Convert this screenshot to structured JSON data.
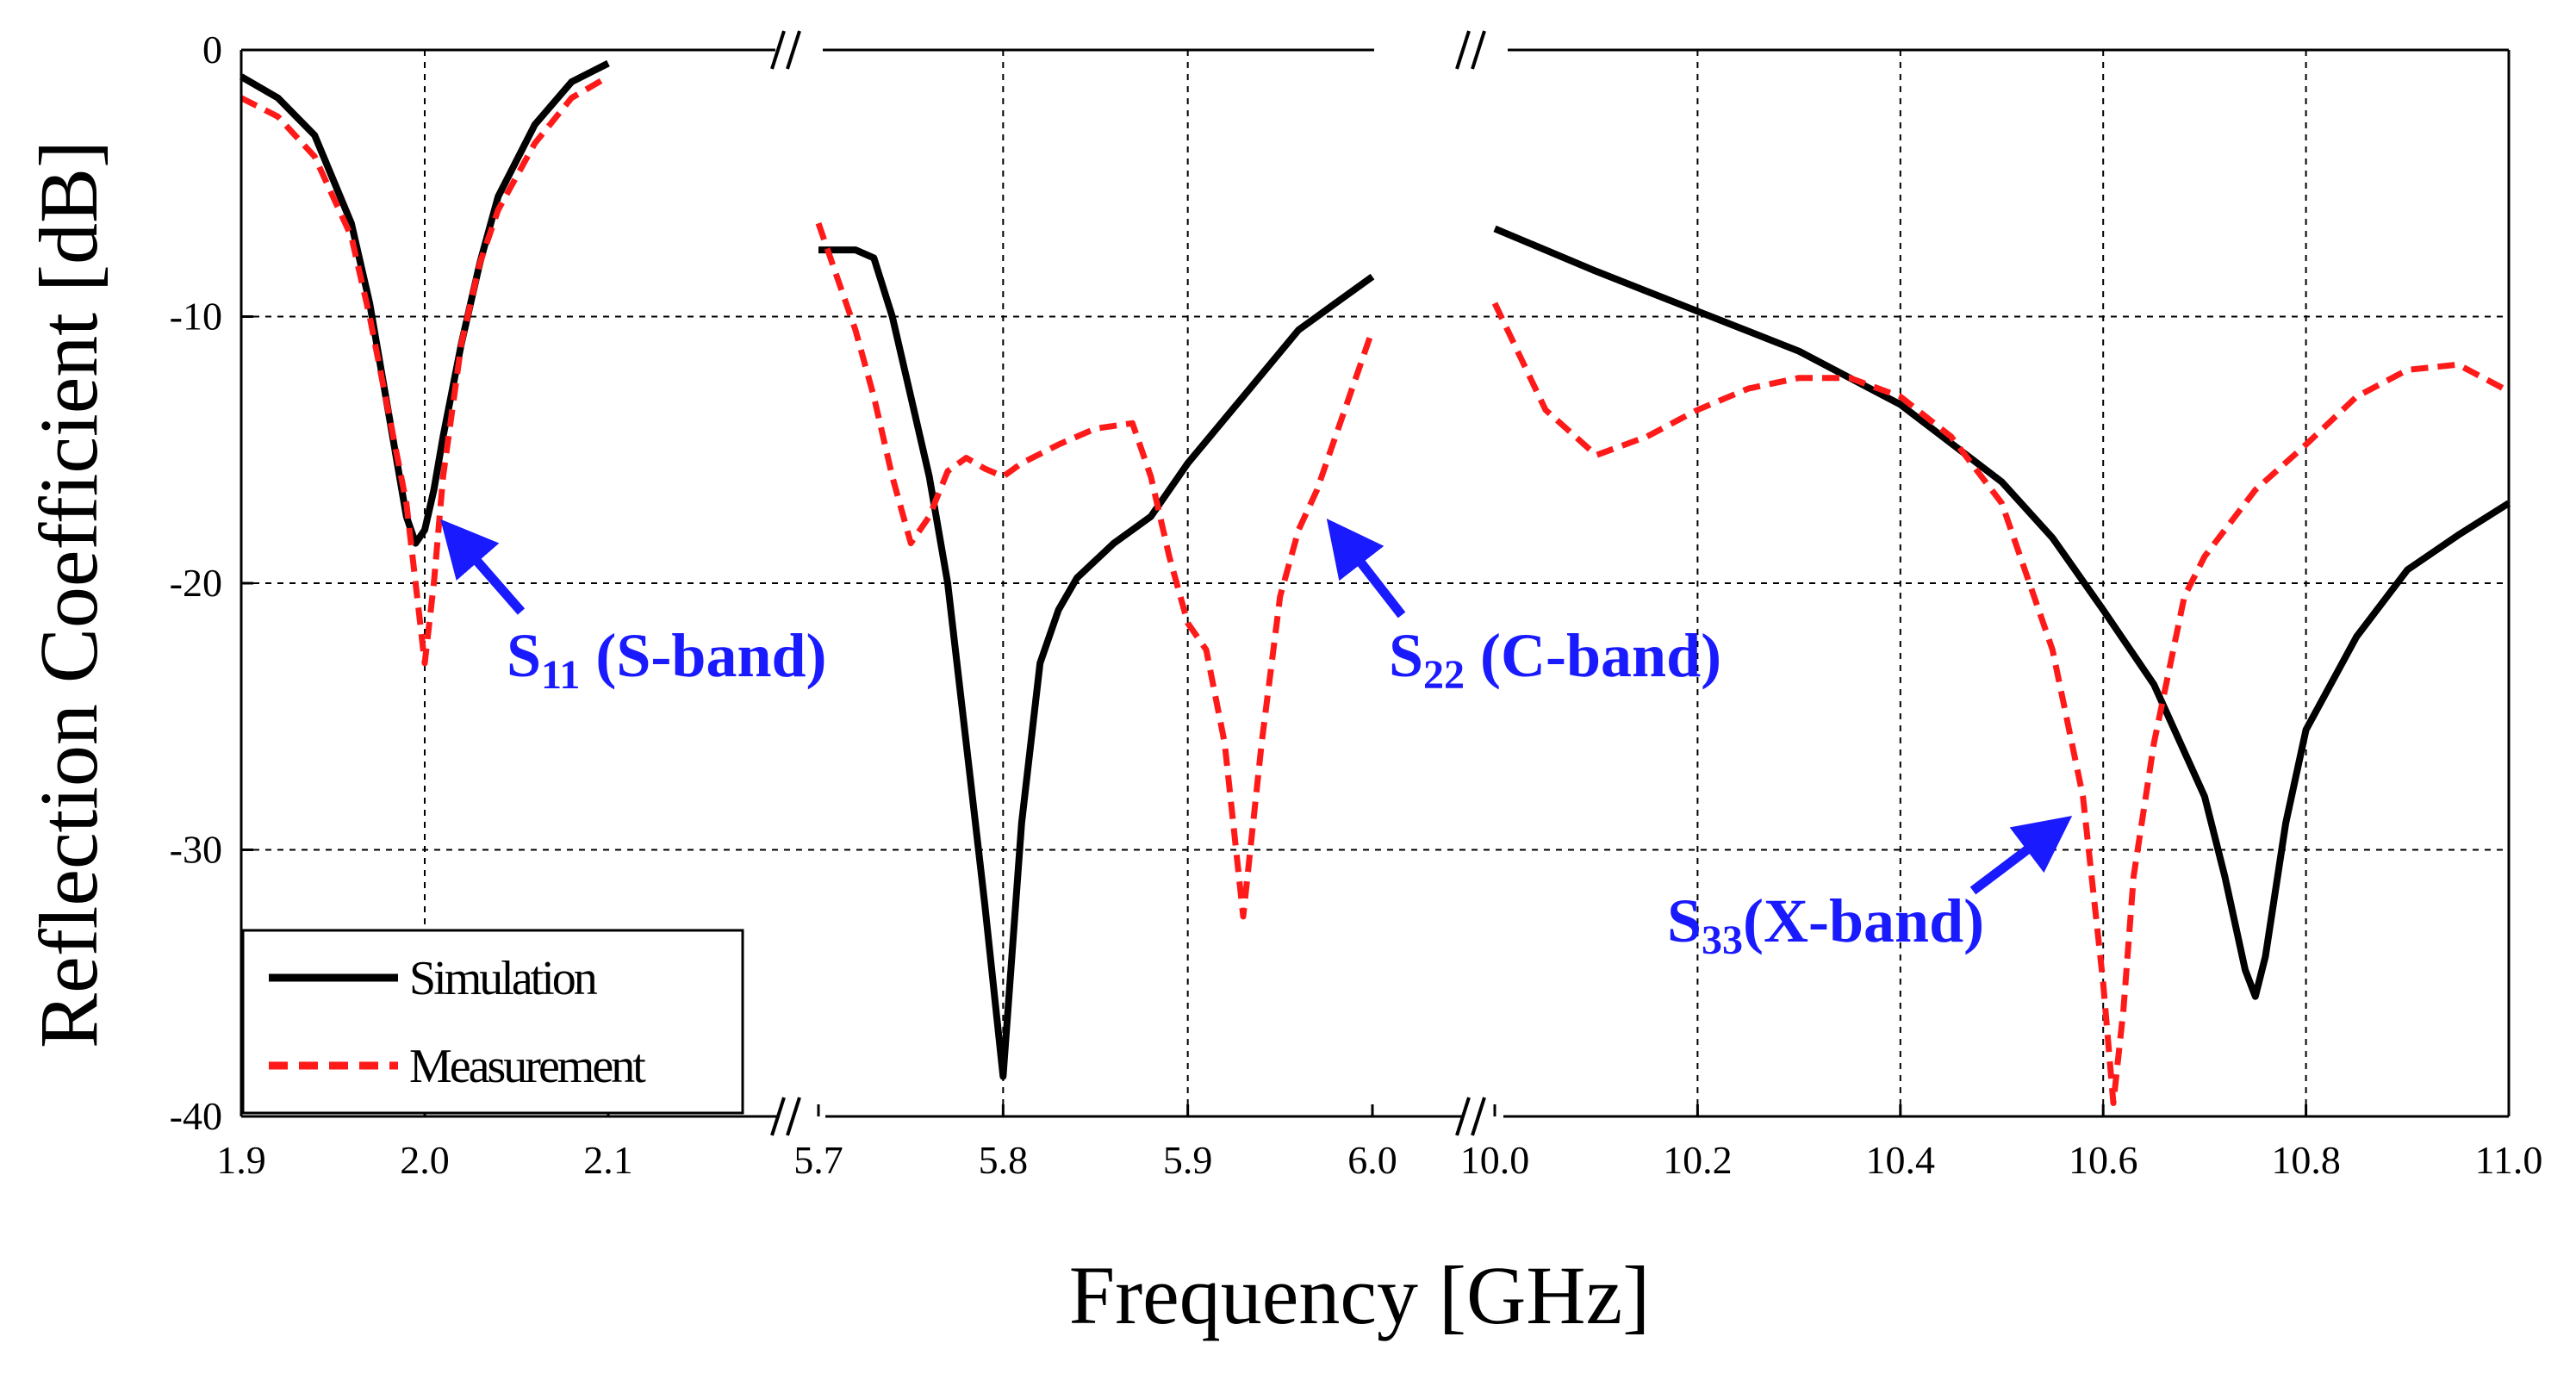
{
  "chart_data": {
    "type": "line",
    "title": "",
    "xlabel": "Frequency [GHz]",
    "ylabel": "Reflection Coefficient [dB]",
    "ylim": [
      -40,
      0
    ],
    "yticks": [
      "0",
      "-10",
      "-20",
      "-30",
      "-40"
    ],
    "grid": true,
    "legend_position": "bottom-left",
    "legend": [
      "Simulation",
      "Measurement"
    ],
    "colors": {
      "simulation": "#000000",
      "measurement": "#ff1a1a",
      "annotation": "#1a1aff"
    },
    "segments": [
      {
        "band": "S-band",
        "xlim": [
          1.9,
          2.1
        ],
        "tick_labels": [
          "1.9",
          "2.0",
          "2.1"
        ],
        "series": [
          {
            "name": "Simulation",
            "x": [
              1.9,
              1.92,
              1.94,
              1.96,
              1.97,
              1.98,
              1.99,
              1.995,
              2.0,
              2.005,
              2.01,
              2.02,
              2.03,
              2.04,
              2.06,
              2.08,
              2.1
            ],
            "y": [
              -1,
              -1.8,
              -3.2,
              -6.5,
              -9.5,
              -13.5,
              -17.5,
              -18.5,
              -18,
              -16.5,
              -14.5,
              -11,
              -8,
              -5.5,
              -2.8,
              -1.2,
              -0.5
            ]
          },
          {
            "name": "Measurement",
            "x": [
              1.9,
              1.92,
              1.94,
              1.96,
              1.97,
              1.98,
              1.99,
              1.995,
              2.0,
              2.005,
              2.01,
              2.02,
              2.03,
              2.04,
              2.06,
              2.08,
              2.1
            ],
            "y": [
              -1.8,
              -2.5,
              -4,
              -7,
              -10,
              -13.5,
              -17,
              -20,
              -23,
              -20,
              -16,
              -11,
              -8,
              -6,
              -3.5,
              -1.8,
              -1
            ]
          }
        ]
      },
      {
        "band": "C-band",
        "xlim": [
          5.7,
          6.0
        ],
        "tick_labels": [
          "5.7",
          "5.8",
          "5.9",
          "6.0"
        ],
        "series": [
          {
            "name": "Simulation",
            "x": [
              5.7,
              5.72,
              5.73,
              5.74,
              5.75,
              5.76,
              5.77,
              5.78,
              5.79,
              5.8,
              5.81,
              5.82,
              5.83,
              5.84,
              5.86,
              5.88,
              5.9,
              5.93,
              5.96,
              5.98,
              6.0
            ],
            "y": [
              -7.5,
              -7.5,
              -7.8,
              -10,
              -13,
              -16,
              -20,
              -26,
              -32,
              -38.5,
              -29,
              -23,
              -21,
              -19.8,
              -18.5,
              -17.5,
              -15.5,
              -13,
              -10.5,
              -9.5,
              -8.5
            ]
          },
          {
            "name": "Measurement",
            "x": [
              5.7,
              5.71,
              5.72,
              5.73,
              5.74,
              5.75,
              5.76,
              5.77,
              5.78,
              5.79,
              5.8,
              5.81,
              5.83,
              5.85,
              5.87,
              5.88,
              5.89,
              5.9,
              5.91,
              5.92,
              5.93,
              5.94,
              5.95,
              5.96,
              5.97,
              5.98,
              5.99,
              6.0
            ],
            "y": [
              -6.5,
              -8.5,
              -10.5,
              -13,
              -16,
              -18.5,
              -17.5,
              -15.8,
              -15.3,
              -15.7,
              -16,
              -15.5,
              -14.8,
              -14.2,
              -14,
              -16,
              -19,
              -21.5,
              -22.5,
              -26,
              -32.5,
              -26,
              -20.5,
              -18,
              -16.5,
              -14.5,
              -12.5,
              -10.5
            ]
          }
        ]
      },
      {
        "band": "X-band",
        "xlim": [
          10.0,
          11.0
        ],
        "tick_labels": [
          "10.0",
          "10.2",
          "10.4",
          "10.6",
          "10.8",
          "11.0"
        ],
        "series": [
          {
            "name": "Simulation",
            "x": [
              10.0,
              10.1,
              10.2,
              10.3,
              10.4,
              10.5,
              10.55,
              10.6,
              10.65,
              10.7,
              10.72,
              10.74,
              10.75,
              10.76,
              10.78,
              10.8,
              10.85,
              10.9,
              10.95,
              11.0
            ],
            "y": [
              -6.7,
              -8.3,
              -9.8,
              -11.3,
              -13.3,
              -16.2,
              -18.3,
              -21,
              -23.8,
              -28,
              -31,
              -34.5,
              -35.5,
              -34,
              -29,
              -25.5,
              -22,
              -19.5,
              -18.2,
              -17
            ]
          },
          {
            "name": "Measurement",
            "x": [
              10.0,
              10.05,
              10.1,
              10.15,
              10.2,
              10.25,
              10.3,
              10.35,
              10.4,
              10.45,
              10.5,
              10.55,
              10.58,
              10.6,
              10.61,
              10.62,
              10.63,
              10.65,
              10.68,
              10.7,
              10.75,
              10.8,
              10.85,
              10.9,
              10.95,
              11.0
            ],
            "y": [
              -9.5,
              -13.5,
              -15.2,
              -14.5,
              -13.5,
              -12.7,
              -12.3,
              -12.3,
              -13,
              -14.5,
              -17,
              -22.5,
              -28,
              -35,
              -39.5,
              -36,
              -31,
              -26,
              -20.5,
              -19,
              -16.5,
              -14.8,
              -13,
              -12,
              -11.8,
              -12.8
            ]
          }
        ]
      }
    ],
    "annotations": [
      {
        "main": "S",
        "sub": "11",
        "rest": " (S-band)"
      },
      {
        "main": "S",
        "sub": "22",
        "rest": " (C-band)"
      },
      {
        "main": "S",
        "sub": "33",
        "rest": "(X-band)"
      }
    ]
  }
}
